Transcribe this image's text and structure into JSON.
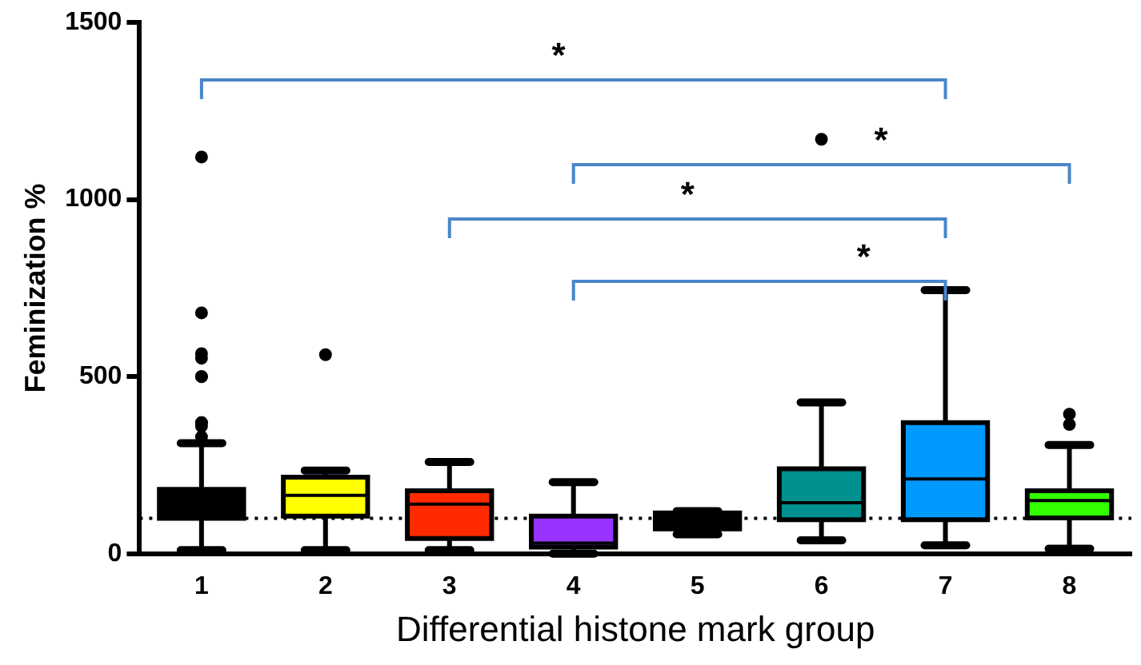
{
  "chart_data": {
    "type": "box",
    "xlabel": "Differential histone mark group",
    "ylabel": "Feminization %",
    "categories": [
      "1",
      "2",
      "3",
      "4",
      "5",
      "6",
      "7",
      "8"
    ],
    "colors": [
      "#000000",
      "#ffff00",
      "#ff2a00",
      "#9933ff",
      "#000000",
      "#009090",
      "#0099ff",
      "#33ff00"
    ],
    "boxes": [
      {
        "low": 10,
        "q1": 100,
        "median": 130,
        "q3": 182,
        "high": 312,
        "outliers": [
          1120,
          680,
          565,
          552,
          500,
          500,
          370,
          360,
          370,
          330
        ]
      },
      {
        "low": 10,
        "q1": 106,
        "median": 165,
        "q3": 216,
        "high": 235,
        "outliers": [
          562
        ]
      },
      {
        "low": 10,
        "q1": 43,
        "median": 140,
        "q3": 178,
        "high": 259
      },
      {
        "low": 0,
        "q1": 19,
        "median": 30,
        "q3": 106,
        "high": 202
      },
      {
        "low": 55,
        "q1": 70,
        "median": 92,
        "q3": 115,
        "high": 120
      },
      {
        "low": 38,
        "q1": 96,
        "median": 144,
        "q3": 240,
        "high": 427,
        "outliers": [
          1170
        ]
      },
      {
        "low": 24,
        "q1": 96,
        "median": 211,
        "q3": 370,
        "high": 744
      },
      {
        "low": 14,
        "q1": 101,
        "median": 150,
        "q3": 178,
        "high": 307,
        "outliers": [
          365,
          394
        ]
      }
    ],
    "ylim": [
      0,
      1500
    ],
    "yticks": [
      0,
      500,
      1000,
      1500
    ],
    "ref_lines": [
      {
        "axis": "y",
        "value": 100,
        "line_style": "dotted",
        "color": "#000000"
      }
    ],
    "annotations": [
      "*",
      "*",
      "*",
      "*"
    ],
    "grid": false,
    "legend": false
  }
}
